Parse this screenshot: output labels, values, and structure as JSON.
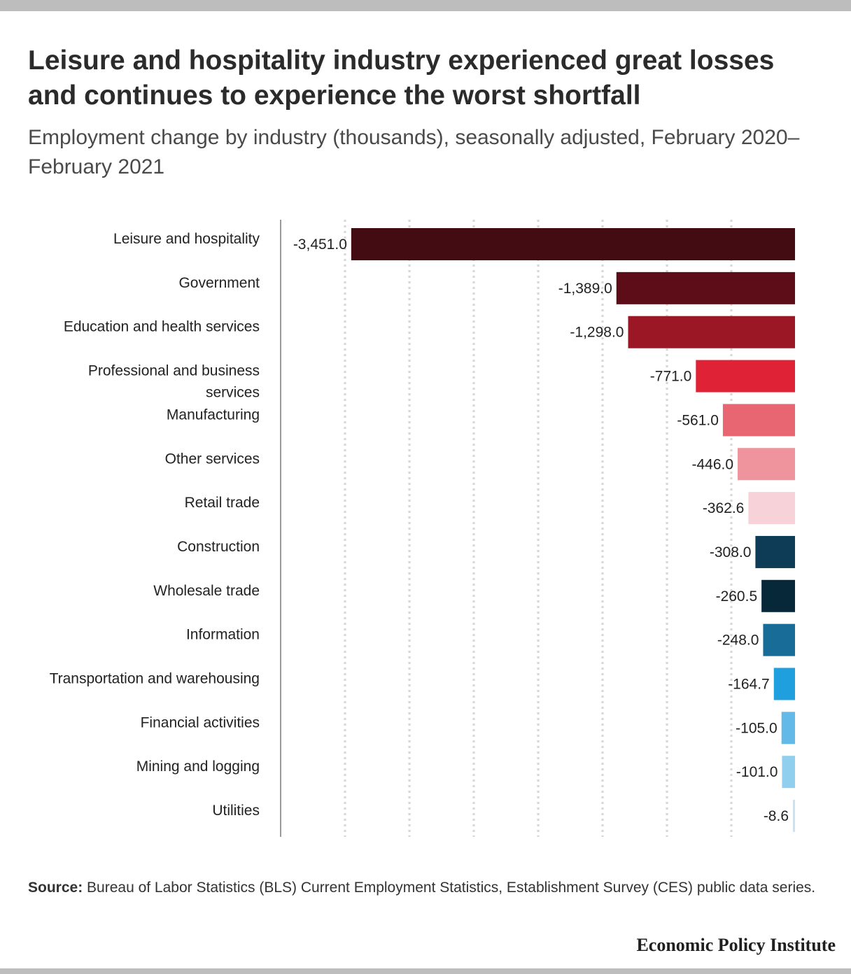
{
  "title": "Leisure and hospitality industry experienced great losses and continues to experience the worst shortfall",
  "subtitle": "Employment change by industry (thousands), seasonally adjusted, February 2020–February 2021",
  "source_label": "Source:",
  "source_text": "Bureau of Labor Statistics (BLS) Current Employment Statistics, Establishment Survey (CES) public data series.",
  "brand": "Economic Policy Institute",
  "chart_data": {
    "type": "bar",
    "orientation": "horizontal",
    "grid": true,
    "xlim": [
      -4000,
      0
    ],
    "categories": [
      "Leisure and hospitality",
      "Government",
      "Education and health services",
      "Professional and business services",
      "Manufacturing",
      "Other services",
      "Retail trade",
      "Construction",
      "Wholesale trade",
      "Information",
      "Transportation and warehousing",
      "Financial activities",
      "Mining and logging",
      "Utilities"
    ],
    "values": [
      -3451.0,
      -1389.0,
      -1298.0,
      -771.0,
      -561.0,
      -446.0,
      -362.6,
      -308.0,
      -260.5,
      -248.0,
      -164.7,
      -105.0,
      -101.0,
      -8.6
    ],
    "labels": [
      "-3,451.0",
      "-1,389.0",
      "-1,298.0",
      "-771.0",
      "-561.0",
      "-446.0",
      "-362.6",
      "-308.0",
      "-260.5",
      "-248.0",
      "-164.7",
      "-105.0",
      "-101.0",
      "-8.6"
    ],
    "colors": [
      "#430b12",
      "#5c0d17",
      "#9b1726",
      "#df2236",
      "#e86572",
      "#ef939c",
      "#f7d3d9",
      "#0e3b55",
      "#072839",
      "#186d98",
      "#1f9fdd",
      "#63b9e8",
      "#91cfef",
      "#c7e4f5"
    ]
  }
}
